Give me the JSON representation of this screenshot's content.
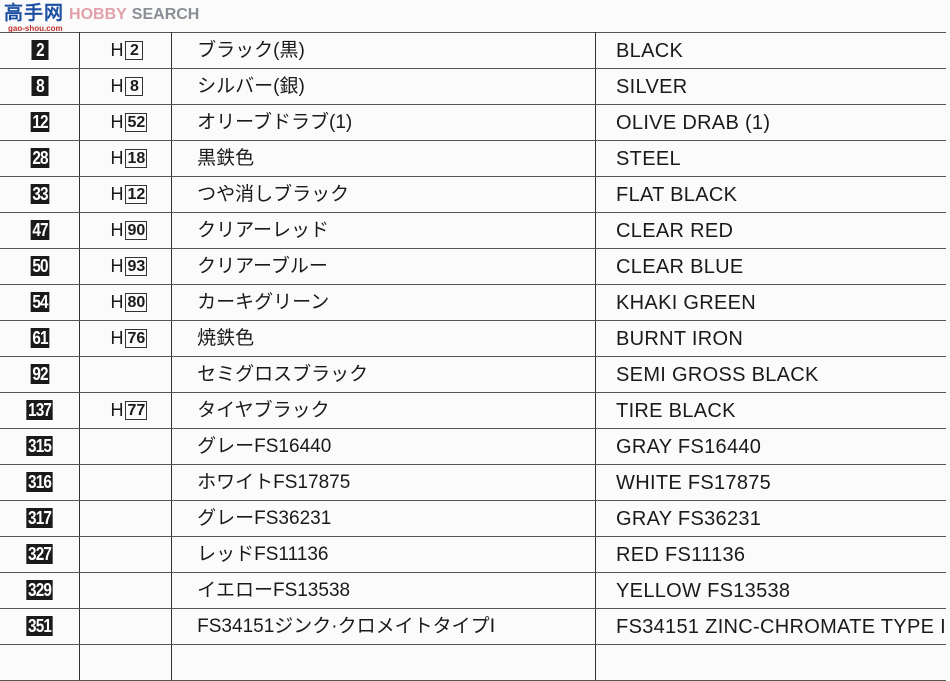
{
  "watermark": {
    "cn": "高手网",
    "en": "SEARCH",
    "ghost": "HOBBY",
    "url": "gao-shou.com"
  },
  "rows": [
    {
      "no": "2",
      "h_code": "2",
      "jp": "ブラック(黒)",
      "en": "BLACK"
    },
    {
      "no": "8",
      "h_code": "8",
      "jp": "シルバー(銀)",
      "en": "SILVER"
    },
    {
      "no": "12",
      "h_code": "52",
      "jp": "オリーブドラブ(1)",
      "en": "OLIVE DRAB (1)"
    },
    {
      "no": "28",
      "h_code": "18",
      "jp": "黒鉄色",
      "en": "STEEL"
    },
    {
      "no": "33",
      "h_code": "12",
      "jp": "つや消しブラック",
      "en": "FLAT BLACK"
    },
    {
      "no": "47",
      "h_code": "90",
      "jp": "クリアーレッド",
      "en": "CLEAR RED"
    },
    {
      "no": "50",
      "h_code": "93",
      "jp": "クリアーブルー",
      "en": "CLEAR BLUE"
    },
    {
      "no": "54",
      "h_code": "80",
      "jp": "カーキグリーン",
      "en": "KHAKI GREEN"
    },
    {
      "no": "61",
      "h_code": "76",
      "jp": "焼鉄色",
      "en": "BURNT IRON"
    },
    {
      "no": "92",
      "h_code": "",
      "jp": "セミグロスブラック",
      "en": "SEMI GROSS BLACK"
    },
    {
      "no": "137",
      "h_code": "77",
      "jp": "タイヤブラック",
      "en": "TIRE BLACK"
    },
    {
      "no": "315",
      "h_code": "",
      "jp": "グレーFS16440",
      "en": "GRAY FS16440"
    },
    {
      "no": "316",
      "h_code": "",
      "jp": "ホワイトFS17875",
      "en": "WHITE FS17875"
    },
    {
      "no": "317",
      "h_code": "",
      "jp": "グレーFS36231",
      "en": "GRAY FS36231"
    },
    {
      "no": "327",
      "h_code": "",
      "jp": "レッドFS11136",
      "en": "RED FS11136"
    },
    {
      "no": "329",
      "h_code": "",
      "jp": "イエローFS13538",
      "en": "YELLOW FS13538"
    },
    {
      "no": "351",
      "h_code": "",
      "jp": "FS34151ジンク·クロメイトタイプⅠ",
      "en": "FS34151 ZINC-CHROMATE TYPE I"
    }
  ],
  "h_prefix": "H"
}
